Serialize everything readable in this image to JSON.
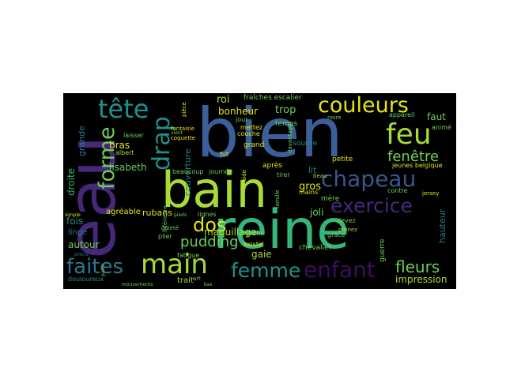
{
  "colors": {
    "background": "#000000",
    "page": "#ffffff",
    "palette": {
      "purple": "#46287a",
      "dark_purple": "#3b0f5c",
      "indigo": "#39568c",
      "blue": "#3a5f99",
      "teal": "#2a788e",
      "teal_green": "#21908d",
      "green": "#35b779",
      "light_green": "#6ece58",
      "lime": "#a8db34",
      "yellow": "#e3e418"
    }
  },
  "words": {
    "eau": "eau",
    "bien": "bien",
    "reine": "reine",
    "bain": "bain",
    "tete": "tête",
    "couleurs": "couleurs",
    "feu": "feu",
    "chapeau": "chapeau",
    "forme": "forme",
    "drap": "drap",
    "exercice": "exercice",
    "main": "main",
    "faites": "faites",
    "femme": "femme",
    "enfant": "enfant",
    "fleurs": "fleurs",
    "dos": "dos",
    "fenetre": "fenêtre",
    "pudding": "pudding",
    "impression": "impression",
    "roi": "roi",
    "bonheur": "bonheur",
    "trop": "trop",
    "lisabeth": "lisabeth",
    "bras": "bras",
    "faut": "faut",
    "droite": "droite",
    "grande": "grande",
    "maquillage": "maquillage",
    "couverture": "couverture",
    "gros": "gros",
    "lit": "lit",
    "joli": "joli",
    "gaie": "gaie",
    "rubans": "rubans",
    "autour": "autour",
    "linge": "linge",
    "fois": "fois",
    "agreable": "agréable",
    "hauteur": "hauteur",
    "sourire": "sourire",
    "temps": "temps",
    "mere": "mère",
    "petite": "petite",
    "jeunes_belgique": "jeunes belgique",
    "trait": "trait",
    "chevalier": "chevalier",
    "fraiches_escalier": "fraîches escalier",
    "jour": "jour",
    "grand": "grand",
    "couche": "couche",
    "beaucoup": "beaucoup",
    "journee": "journée",
    "douloureux": "douloureux",
    "mouvements": "mouvements",
    "albert": "albert",
    "laisser": "laisser",
    "appareil": "appareil",
    "anime": "animé",
    "contre": "contre",
    "jersey": "jersey",
    "guerre": "guerre",
    "grace": "grâce",
    "jeune": "jeune",
    "existe": "existe",
    "fatigue": "fatigue",
    "lignes": "lignes",
    "plier": "plier",
    "fantaisie": "fantaisie",
    "coquette": "coquette",
    "gaiete": "gaieté",
    "inferieure": "inférieure",
    "devez": "devez",
    "prenez": "prenez",
    "mains": "mains",
    "famille": "famille",
    "davantage": "davantage",
    "beau": "beau",
    "apres": "après",
    "aide": "aide",
    "tirer": "tirer",
    "mettez": "mettez",
    "fut": "fut",
    "vient": "vient",
    "piece": "pièce",
    "noire": "noire",
    "simple": "simple",
    "precis": "précis",
    "partir": "partir",
    "pieds": "pieds",
    "art": "art",
    "bas": "bas"
  }
}
